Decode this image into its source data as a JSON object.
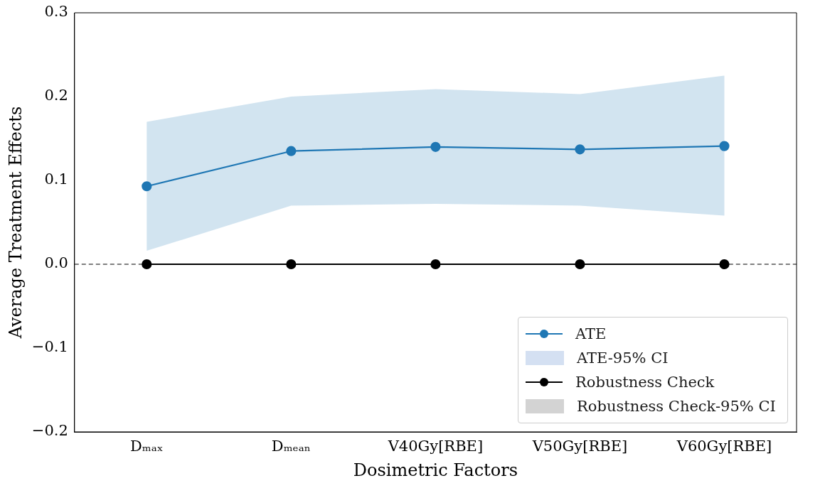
{
  "chart_data": {
    "type": "line",
    "xlabel": "Dosimetric Factors",
    "ylabel": "Average Treatment Effects",
    "categories": [
      "Dₘₐₓ",
      "Dₘₑₐₙ",
      "V40Gy[RBE]",
      "V50Gy[RBE]",
      "V60Gy[RBE]"
    ],
    "ylim": [
      -0.2,
      0.3
    ],
    "yticks": [
      {
        "value": -0.2,
        "label": "−0.2"
      },
      {
        "value": -0.1,
        "label": "−0.1"
      },
      {
        "value": 0,
        "label": "0.0"
      },
      0.1,
      0.2,
      0.3
    ],
    "grid": false,
    "legend": "bottom right",
    "marker": "circle",
    "line_style": "solid",
    "ref_lines": [
      {
        "axis": "y",
        "value": 0,
        "color": "#000000",
        "line_style": "dashed"
      }
    ],
    "series": [
      {
        "name": "ATE",
        "type": "line",
        "color": "#1f77b4",
        "values": [
          0.093,
          0.135,
          0.14,
          0.137,
          0.141
        ],
        "lower": [
          0.016,
          0.07,
          0.072,
          0.07,
          0.058
        ],
        "upper": [
          0.17,
          0.2,
          0.209,
          0.203,
          0.225
        ]
      },
      {
        "name": "ATE-95% CI",
        "type": "area",
        "color": "#d4e0f2",
        "values": [
          null,
          null,
          null,
          null,
          null
        ]
      },
      {
        "name": "Robustness Check",
        "type": "line",
        "color": "#000000",
        "values": [
          0,
          0,
          0,
          0,
          0
        ]
      },
      {
        "name": "Robustness Check-95% CI",
        "type": "area",
        "color": "#d3d3d3",
        "values": [
          null,
          null,
          null,
          null,
          null
        ]
      }
    ]
  }
}
